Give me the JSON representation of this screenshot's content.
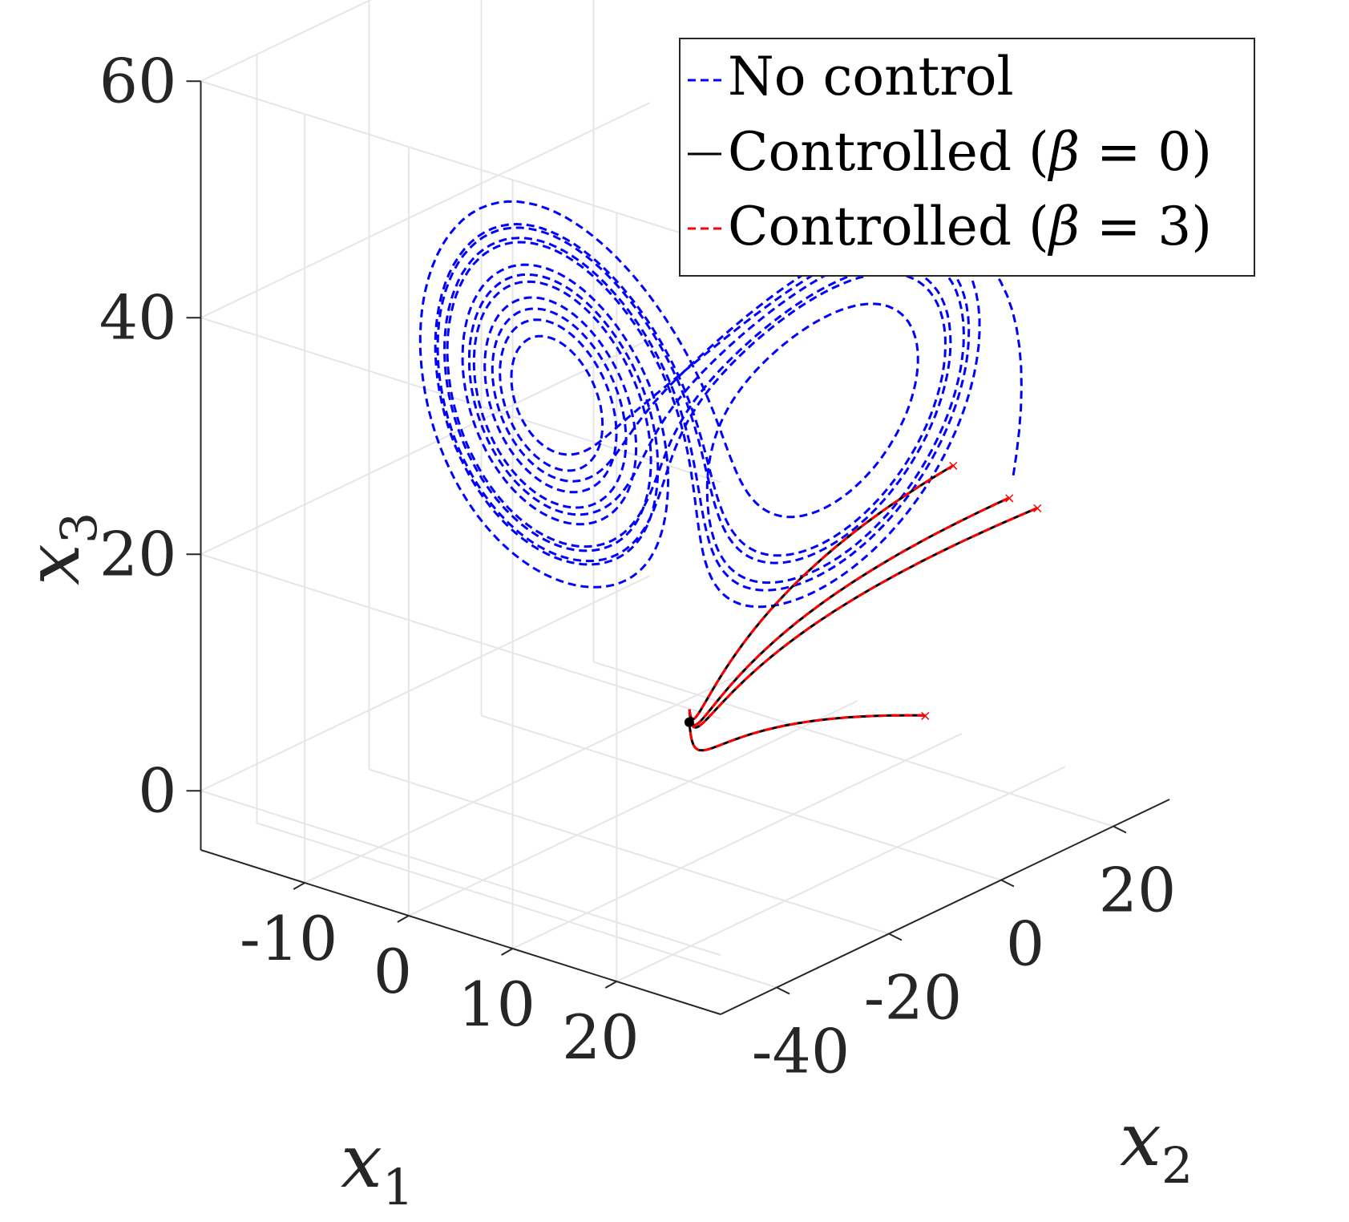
{
  "chart_data": {
    "type": "line",
    "projection": "3d",
    "axes": {
      "x1": {
        "label": "x",
        "subscript": "1",
        "ticks": [
          "-10",
          "0",
          "10",
          "20"
        ],
        "range": [
          -20,
          30
        ]
      },
      "x2": {
        "label": "x",
        "subscript": "2",
        "ticks": [
          "-40",
          "-20",
          "0",
          "20"
        ],
        "range": [
          -50,
          30
        ]
      },
      "x3": {
        "label": "x",
        "subscript": "3",
        "ticks": [
          "0",
          "20",
          "40",
          "60"
        ],
        "range": [
          -5,
          60
        ]
      }
    },
    "grid": true,
    "legend": {
      "placement": "top-right",
      "entries": [
        {
          "text": "No control",
          "color": "#0000ff",
          "style": "dashed"
        },
        {
          "prefix": "Controlled (",
          "symbol": "β",
          "suffix": " = 0)",
          "color": "#000000",
          "style": "solid"
        },
        {
          "prefix": "Controlled (",
          "symbol": "β",
          "suffix": " = 3)",
          "color": "#ff0000",
          "style": "dashed"
        }
      ]
    },
    "series": [
      {
        "name": "No control",
        "color": "#0000ff",
        "style": "dashed",
        "description_points": "Lorenz attractor trajectories (two lobes centered near x3 ≈ 27)",
        "lobes": [
          {
            "center": [
              -8.5,
              -8.5,
              27
            ],
            "loops": 9
          },
          {
            "center": [
              8.5,
              8.5,
              27
            ],
            "loops": 7
          }
        ]
      },
      {
        "name": "Controlled (β = 0)",
        "color": "#000000",
        "style": "solid",
        "start_points": [
          [
            20,
            20,
            20
          ],
          [
            20,
            10,
            25
          ],
          [
            20,
            5,
            5
          ],
          [
            20,
            25,
            18
          ]
        ],
        "end_point": [
          0,
          0,
          0
        ]
      },
      {
        "name": "Controlled (β = 3)",
        "color": "#ff0000",
        "style": "dashed",
        "start_points": [
          [
            20,
            20,
            20
          ],
          [
            20,
            10,
            25
          ],
          [
            20,
            5,
            5
          ],
          [
            20,
            25,
            18
          ]
        ],
        "end_point": [
          0,
          0,
          0
        ]
      }
    ]
  }
}
